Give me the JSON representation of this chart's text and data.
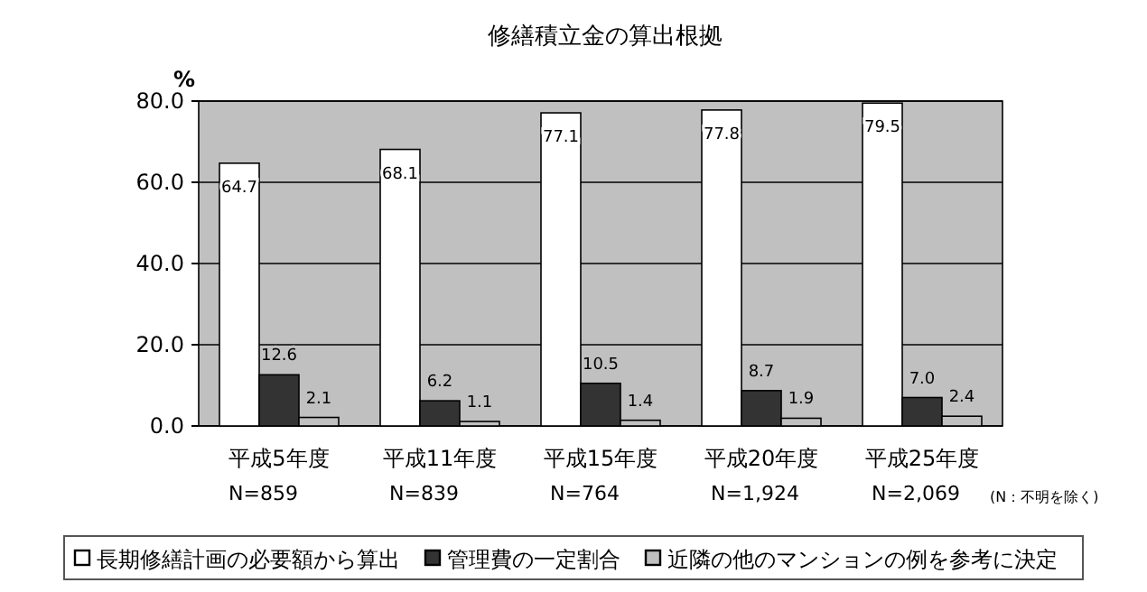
{
  "chart_data": {
    "type": "bar",
    "title": "修繕積立金の算出根拠",
    "ylabel": "%",
    "categories": [
      "平成5年度\nN=859",
      "平成11年度\nN=839",
      "平成15年度\nN=764",
      "平成20年度\nN=1,924",
      "平成25年度\nN=2,069"
    ],
    "series": [
      {
        "name": "長期修繕計画の必要額から算出",
        "color": "#ffffff",
        "values": [
          64.7,
          68.1,
          77.1,
          77.8,
          79.5
        ],
        "value_labels": [
          "64.7",
          "68.1",
          "77.1",
          "77.8",
          "79.5"
        ]
      },
      {
        "name": "管理費の一定割合",
        "color": "#333333",
        "values": [
          12.6,
          6.2,
          10.5,
          8.7,
          7.0
        ],
        "value_labels": [
          "12.6",
          "6.2",
          "10.5",
          "8.7",
          "7.0"
        ]
      },
      {
        "name": "近隣の他のマンションの例を参考に決定",
        "color": "#c0c0c0",
        "values": [
          2.1,
          1.1,
          1.4,
          1.9,
          2.4
        ],
        "value_labels": [
          "2.1",
          "1.1",
          "1.4",
          "1.9",
          "2.4"
        ]
      }
    ],
    "ylim": [
      0,
      80
    ],
    "yticks": [
      {
        "value": 0,
        "label": "0.0"
      },
      {
        "value": 20,
        "label": "20.0"
      },
      {
        "value": 40,
        "label": "40.0"
      },
      {
        "value": 60,
        "label": "60.0"
      },
      {
        "value": 80,
        "label": "80.0"
      }
    ],
    "grid": "y",
    "legend": "bottom",
    "annotations": [
      "(N：不明を除く)"
    ]
  }
}
